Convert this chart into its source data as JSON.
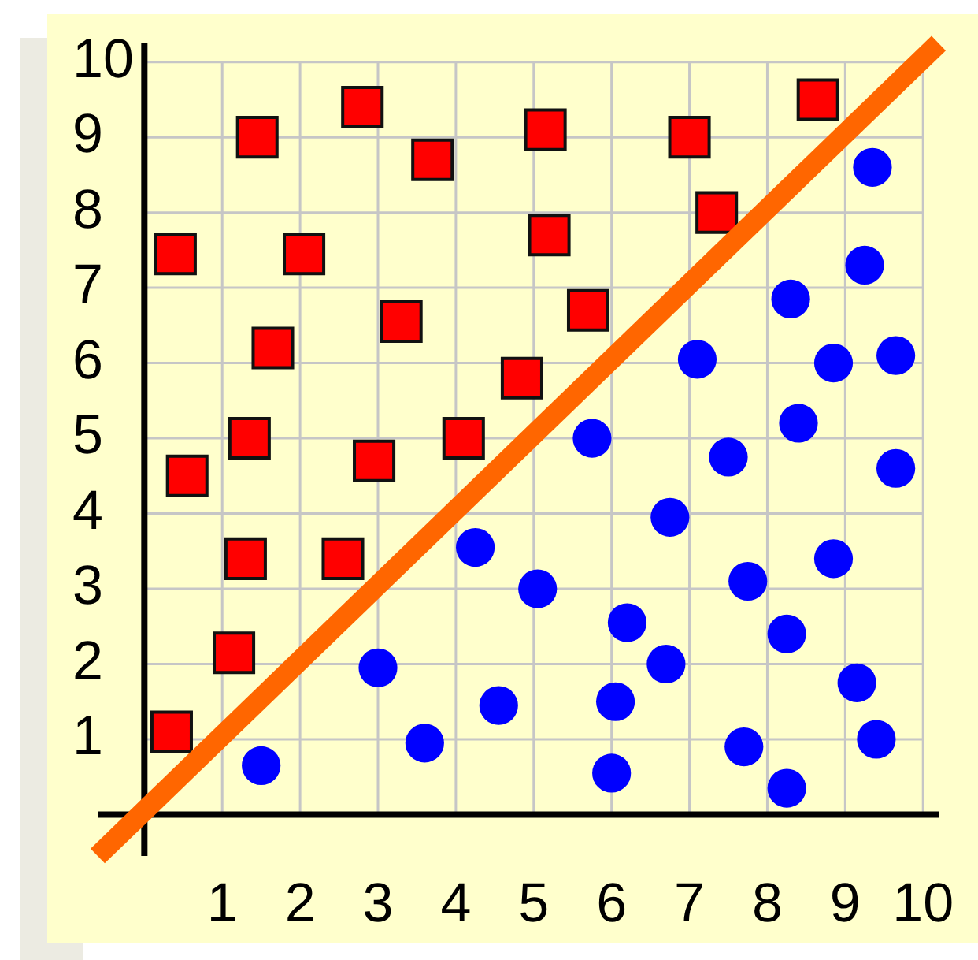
{
  "chart_data": {
    "type": "scatter",
    "xlim": [
      -0.6,
      10.2
    ],
    "ylim": [
      -0.55,
      10.25
    ],
    "xticks": [
      {
        "value": 0,
        "label": null
      },
      1,
      2,
      3,
      4,
      5,
      6,
      7,
      8,
      9,
      10
    ],
    "yticks": [
      {
        "value": 0,
        "label": null
      },
      1,
      2,
      3,
      4,
      5,
      6,
      7,
      8,
      9,
      10
    ],
    "grid": true,
    "series": [
      {
        "type": "scatter",
        "marker": "square",
        "color": "#ff0000",
        "x": [
          0.4,
          0.55,
          1.45,
          2.05,
          1.65,
          1.35,
          1.3,
          1.15,
          0.35,
          2.8,
          3.7,
          3.3,
          2.95,
          2.55,
          4.1,
          4.85,
          5.15,
          5.2,
          5.7,
          7.0,
          7.35,
          8.65
        ],
        "values": [
          7.45,
          4.5,
          9.0,
          7.45,
          6.2,
          5.0,
          3.4,
          2.15,
          1.1,
          9.4,
          8.7,
          6.55,
          4.7,
          3.4,
          5.0,
          5.8,
          9.1,
          7.7,
          6.7,
          9.0,
          8.0,
          9.5
        ]
      },
      {
        "type": "scatter",
        "marker": "circle",
        "color": "#0000ff",
        "x": [
          9.35,
          9.25,
          8.3,
          7.1,
          8.85,
          9.65,
          8.4,
          5.75,
          7.5,
          9.65,
          6.75,
          8.85,
          5.05,
          7.75,
          6.2,
          8.25,
          6.7,
          9.15,
          4.55,
          6.05,
          7.7,
          9.4,
          6.0,
          8.25,
          4.25,
          3.0,
          3.6,
          1.5
        ],
        "values": [
          8.6,
          7.3,
          6.85,
          6.05,
          6.0,
          6.1,
          5.2,
          5.0,
          4.75,
          4.6,
          3.95,
          3.4,
          3.0,
          3.1,
          2.55,
          2.4,
          2.0,
          1.75,
          1.45,
          1.5,
          0.9,
          1.0,
          0.55,
          0.35,
          3.55,
          1.95,
          0.95,
          0.65
        ]
      },
      {
        "type": "line",
        "marker": "none",
        "line_style": "solid",
        "color": "#ff6600",
        "x": [
          -0.6,
          10.2
        ],
        "values": [
          -0.55,
          10.25
        ]
      }
    ]
  }
}
